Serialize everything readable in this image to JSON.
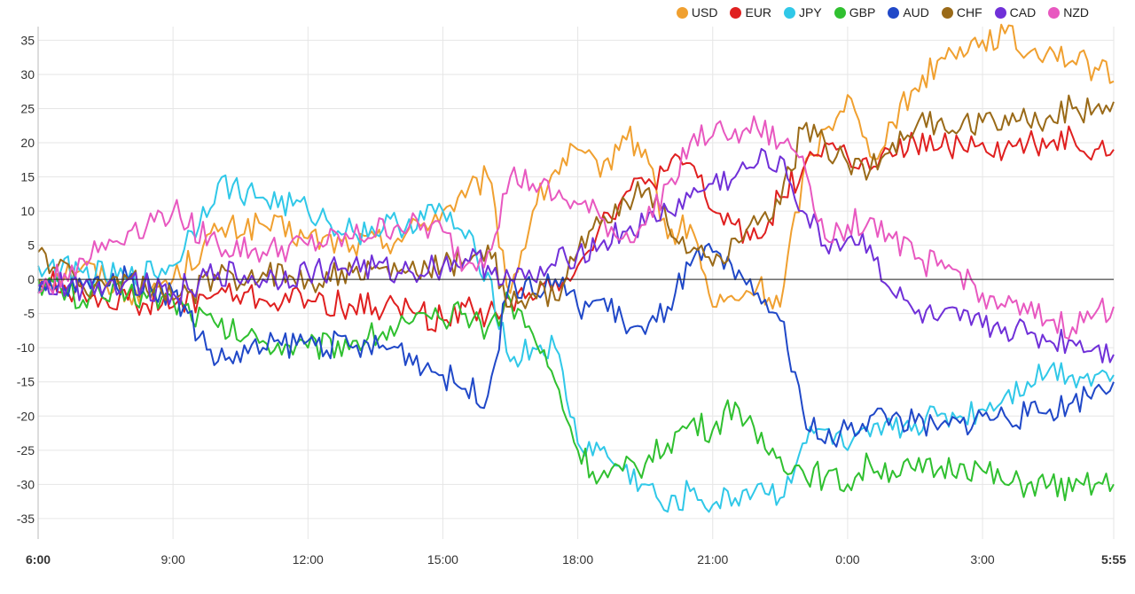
{
  "chart_data": {
    "type": "line",
    "ylim": [
      -38,
      37
    ],
    "yticks": [
      35,
      30,
      25,
      20,
      15,
      10,
      5,
      0,
      -5,
      -10,
      -15,
      -20,
      -25,
      -30,
      -35
    ],
    "x_start": "6:00",
    "x_end": "5:55",
    "xtick_labels": [
      "6:00",
      "9:00",
      "12:00",
      "15:00",
      "18:00",
      "21:00",
      "0:00",
      "3:00",
      "5:55"
    ],
    "xtick_positions_hours": [
      0,
      3,
      6,
      9,
      12,
      15,
      18,
      21,
      23.917
    ],
    "grid": true,
    "legend_position": "top-right",
    "series": [
      {
        "name": "USD",
        "color": "#f0a030",
        "x": [
          0,
          1,
          2,
          3,
          4,
          5,
          6,
          7,
          8,
          9,
          9.5,
          10,
          10.5,
          11,
          11.5,
          12,
          12.5,
          13,
          13.5,
          14,
          14.5,
          15,
          15.5,
          16,
          16.5,
          17,
          17.5,
          18,
          18.5,
          19,
          19.5,
          20,
          20.5,
          21,
          21.5,
          22,
          22.5,
          23,
          23.5,
          23.917
        ],
        "y": [
          0,
          2,
          -2,
          0,
          7,
          8,
          6,
          5,
          6,
          10,
          12,
          15,
          -2,
          10,
          16,
          19,
          15,
          21,
          19,
          6,
          8,
          -4,
          -3,
          -1,
          -4,
          15,
          22,
          27,
          18,
          23,
          28,
          32,
          34,
          35,
          36,
          33,
          34,
          32,
          31,
          29
        ]
      },
      {
        "name": "EUR",
        "color": "#e02020",
        "x": [
          0,
          1,
          2,
          3,
          4,
          5,
          6,
          7,
          8,
          9,
          9.5,
          10,
          10.5,
          11,
          11.5,
          12,
          12.5,
          13,
          13.5,
          14,
          14.5,
          15,
          15.5,
          16,
          16.5,
          17,
          17.5,
          18,
          18.5,
          19,
          19.5,
          20,
          20.5,
          21,
          21.5,
          22,
          22.5,
          23,
          23.5,
          23.917
        ],
        "y": [
          0,
          -2,
          -3,
          -4,
          -2,
          -3,
          -3,
          -4,
          -4,
          -6,
          -4,
          -5,
          -3,
          -3,
          0,
          2,
          8,
          12,
          14,
          16,
          17,
          10,
          8,
          6,
          12,
          16,
          20,
          18,
          16,
          18,
          20,
          19,
          20,
          20,
          19,
          20,
          20,
          21,
          19,
          19
        ]
      },
      {
        "name": "JPY",
        "color": "#30c8e8",
        "x": [
          0,
          1,
          2,
          3,
          4,
          5,
          6,
          7,
          8,
          9,
          9.5,
          10,
          10.5,
          11,
          11.5,
          12,
          12.5,
          13,
          13.5,
          14,
          14.5,
          15,
          15.5,
          16,
          16.5,
          17,
          17.5,
          18,
          18.5,
          19,
          19.5,
          20,
          20.5,
          21,
          21.5,
          22,
          22.5,
          23,
          23.5,
          23.917
        ],
        "y": [
          2,
          1,
          0,
          2,
          14,
          12,
          10,
          7,
          8,
          10,
          6,
          1,
          -12,
          -10,
          -10,
          -24,
          -25,
          -28,
          -30,
          -34,
          -31,
          -33,
          -32,
          -30,
          -32,
          -24,
          -22,
          -25,
          -23,
          -22,
          -21,
          -20,
          -20,
          -19,
          -17,
          -15,
          -13,
          -14,
          -14,
          -14
        ]
      },
      {
        "name": "GBP",
        "color": "#30c030",
        "x": [
          0,
          1,
          2,
          3,
          4,
          5,
          6,
          7,
          8,
          9,
          9.5,
          10,
          10.5,
          11,
          11.5,
          12,
          12.5,
          13,
          13.5,
          14,
          14.5,
          15,
          15.5,
          16,
          16.5,
          17,
          17.5,
          18,
          18.5,
          19,
          19.5,
          20,
          20.5,
          21,
          21.5,
          22,
          22.5,
          23,
          23.5,
          23.917
        ],
        "y": [
          0,
          -3,
          -2,
          -3,
          -7,
          -9,
          -10,
          -9,
          -7,
          -6,
          -5,
          -7,
          -3,
          -8,
          -15,
          -25,
          -29,
          -28,
          -27,
          -24,
          -21,
          -22,
          -18,
          -24,
          -26,
          -28,
          -29,
          -30,
          -27,
          -28,
          -28,
          -28,
          -27,
          -28,
          -30,
          -30,
          -30,
          -31,
          -30,
          -30
        ]
      },
      {
        "name": "AUD",
        "color": "#2048c8",
        "x": [
          0,
          1,
          2,
          3,
          4,
          5,
          6,
          7,
          8,
          9,
          9.5,
          10,
          10.5,
          11,
          11.5,
          12,
          12.5,
          13,
          13.5,
          14,
          14.5,
          15,
          15.5,
          16,
          16.5,
          17,
          17.5,
          18,
          18.5,
          19,
          19.5,
          20,
          20.5,
          21,
          21.5,
          22,
          22.5,
          23,
          23.5,
          23.917
        ],
        "y": [
          -2,
          -1,
          0,
          -2,
          -12,
          -10,
          -9,
          -10,
          -10,
          -14,
          -16,
          -17,
          0,
          -2,
          0,
          -4,
          -3,
          -6,
          -8,
          -4,
          2,
          4,
          0,
          -2,
          -6,
          -19,
          -24,
          -22,
          -20,
          -20,
          -21,
          -22,
          -21,
          -20,
          -20,
          -20,
          -19,
          -18,
          -16,
          -15
        ]
      },
      {
        "name": "CHF",
        "color": "#9a6a18",
        "x": [
          0,
          1,
          2,
          3,
          4,
          5,
          6,
          7,
          8,
          9,
          9.5,
          10,
          10.5,
          11,
          11.5,
          12,
          12.5,
          13,
          13.5,
          14,
          14.5,
          15,
          15.5,
          16,
          16.5,
          17,
          17.5,
          18,
          18.5,
          19,
          19.5,
          20,
          20.5,
          21,
          21.5,
          22,
          22.5,
          23,
          23.5,
          23.917
        ],
        "y": [
          4,
          -1,
          0,
          -3,
          0,
          1,
          0,
          1,
          1,
          2,
          3,
          5,
          -4,
          -2,
          -3,
          4,
          8,
          12,
          13,
          8,
          4,
          2,
          6,
          8,
          11,
          22,
          20,
          17,
          16,
          20,
          22,
          23,
          22,
          23,
          24,
          23,
          24,
          25,
          25,
          26
        ]
      },
      {
        "name": "CAD",
        "color": "#7030d8",
        "x": [
          0,
          1,
          2,
          3,
          4,
          5,
          6,
          7,
          8,
          9,
          9.5,
          10,
          10.5,
          11,
          11.5,
          12,
          12.5,
          13,
          13.5,
          14,
          14.5,
          15,
          15.5,
          16,
          16.5,
          17,
          17.5,
          18,
          18.5,
          19,
          19.5,
          20,
          20.5,
          21,
          21.5,
          22,
          22.5,
          23,
          23.5,
          23.917
        ],
        "y": [
          -1,
          -1,
          0,
          -2,
          1,
          0,
          1,
          2,
          1,
          2,
          3,
          2,
          0,
          0,
          2,
          4,
          5,
          7,
          8,
          10,
          12,
          14,
          15,
          17,
          18,
          10,
          5,
          6,
          5,
          -2,
          -5,
          -6,
          -6,
          -7,
          -7,
          -8,
          -9,
          -9,
          -10,
          -11
        ]
      },
      {
        "name": "NZD",
        "color": "#e858c0",
        "x": [
          0,
          1,
          2,
          3,
          4,
          5,
          6,
          7,
          8,
          9,
          9.5,
          10,
          10.5,
          11,
          11.5,
          12,
          12.5,
          13,
          13.5,
          14,
          14.5,
          15,
          15.5,
          16,
          16.5,
          17,
          17.5,
          18,
          18.5,
          19,
          19.5,
          20,
          20.5,
          21,
          21.5,
          22,
          22.5,
          23,
          23.5,
          23.917
        ],
        "y": [
          -2,
          3,
          7,
          10,
          5,
          4,
          5,
          6,
          8,
          7,
          2,
          4,
          15,
          14,
          12,
          11,
          9,
          6,
          8,
          14,
          20,
          21,
          22,
          22,
          20,
          18,
          6,
          8,
          9,
          6,
          3,
          2,
          1,
          -2,
          -4,
          -5,
          -6,
          -7,
          -5,
          -4
        ]
      }
    ]
  }
}
